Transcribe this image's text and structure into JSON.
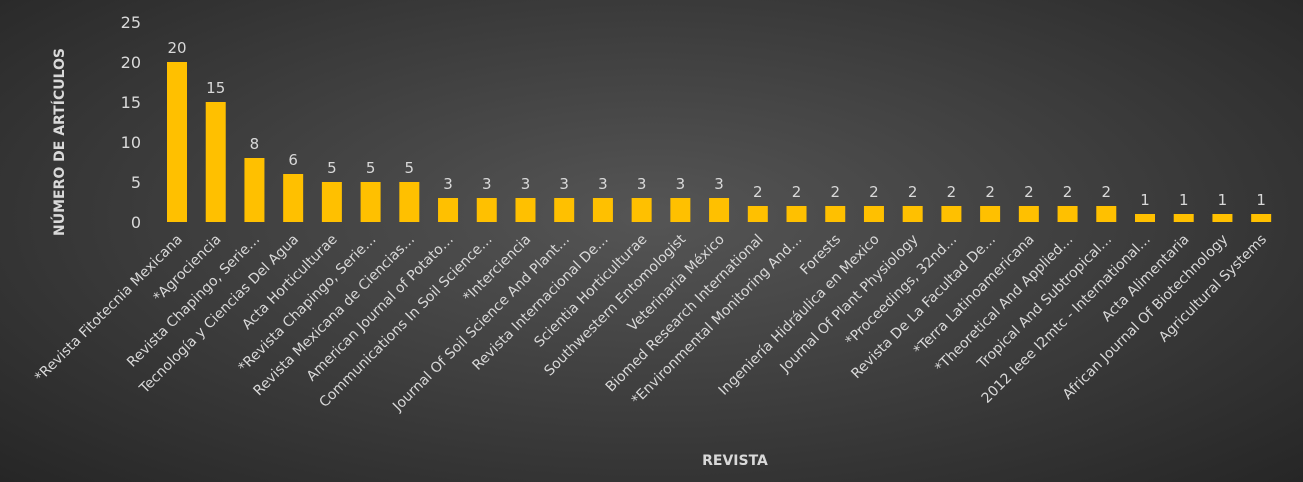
{
  "chart_data": {
    "type": "bar",
    "title": "",
    "xlabel": "REVISTA",
    "ylabel": "NÚMERO DE ARTÍCULOS",
    "ylim": [
      0,
      25
    ],
    "yticks": [
      0,
      5,
      10,
      15,
      20,
      25
    ],
    "grid": false,
    "bar_color": "#FFC000",
    "categories": [
      "*Revista Fitotecnia Mexicana",
      "*Agrociencia",
      "Revista Chapingo, Serie…",
      "Tecnología y Ciencias Del Agua",
      "Acta Horticulturae",
      "*Revista Chapingo, Serie…",
      "Revista Mexicana de Ciencias…",
      "American Journal of Potato…",
      "Communications In Soil Science…",
      "*Interciencia",
      "Journal Of Soil Science And Plant…",
      "Revista Internacional De…",
      "Scientia Horticulturae",
      "Southwestern Entomologist",
      "Veterinaria México",
      "Biomed Research International",
      "*Environmental Monitoring And…",
      "Forests",
      "Ingeniería Hidráulica en Mexico",
      "Journal Of Plant Physiology",
      "*Proceedings, 32nd…",
      "Revista De La Facultad De…",
      "*Terra Latinoamericana",
      "*Theoretical And Applied…",
      "Tropical And Subtropical…",
      "2012 Ieee I2mtc - International…",
      "Acta Alimentaria",
      "African Journal Of Biotechnology",
      "Agricultural Systems"
    ],
    "values": [
      20,
      15,
      8,
      6,
      5,
      5,
      5,
      3,
      3,
      3,
      3,
      3,
      3,
      3,
      3,
      2,
      2,
      2,
      2,
      2,
      2,
      2,
      2,
      2,
      2,
      1,
      1,
      1,
      1
    ]
  }
}
